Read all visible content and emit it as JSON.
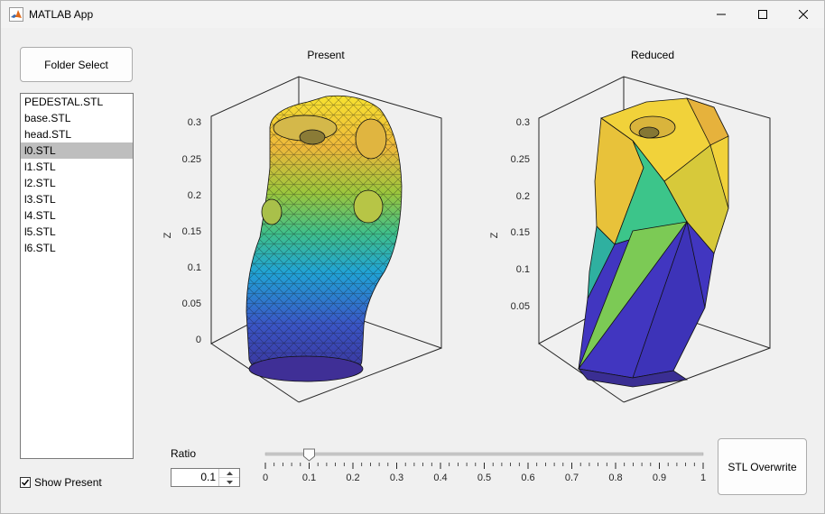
{
  "window": {
    "title": "MATLAB App"
  },
  "folder_button": {
    "label": "Folder Select"
  },
  "file_list": {
    "items": [
      "PEDESTAL.STL",
      "base.STL",
      "head.STL",
      "l0.STL",
      "l1.STL",
      "l2.STL",
      "l3.STL",
      "l4.STL",
      "l5.STL",
      "l6.STL"
    ],
    "selected": "l0.STL"
  },
  "show_present": {
    "label": "Show Present",
    "checked": true
  },
  "plots": {
    "present": {
      "title": "Present",
      "zlabel": "Z",
      "zticks": [
        "0",
        "0.05",
        "0.1",
        "0.15",
        "0.2",
        "0.25",
        "0.3"
      ]
    },
    "reduced": {
      "title": "Reduced",
      "zlabel": "Z",
      "zticks": [
        "0.05",
        "0.1",
        "0.15",
        "0.2",
        "0.25",
        "0.3"
      ]
    }
  },
  "ratio": {
    "label": "Ratio",
    "value": "0.1",
    "slider_min": 0,
    "slider_max": 1,
    "slider_value": 0.1,
    "tick_labels": [
      "0",
      "0.1",
      "0.2",
      "0.3",
      "0.4",
      "0.5",
      "0.6",
      "0.7",
      "0.8",
      "0.9",
      "1"
    ]
  },
  "overwrite_button": {
    "label": "STL Overwrite"
  },
  "colors": {
    "selected_bg": "#bebebe",
    "viridis_low": "#3b2e93",
    "viridis_mid": "#2aa8a0",
    "viridis_high": "#f8e432"
  },
  "icons": [
    "matlab-logo-icon",
    "minimize-icon",
    "maximize-icon",
    "close-icon",
    "checkmark-icon",
    "spin-up-icon",
    "spin-down-icon"
  ]
}
